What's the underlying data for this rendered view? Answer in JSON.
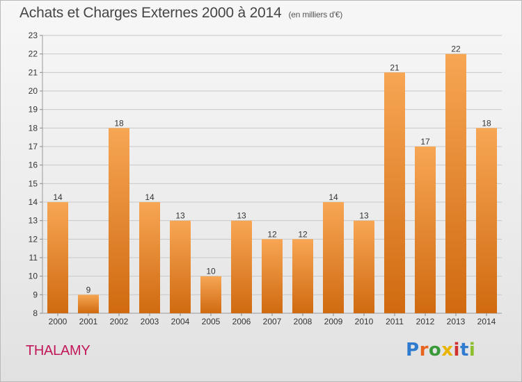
{
  "header": {
    "title": "Achats et Charges Externes 2000 à 2014",
    "unit": "(en milliers d'€)"
  },
  "footer": {
    "commune": "THALAMY",
    "logo_text": "Proxiti"
  },
  "colors": {
    "bar_top": "#f7a654",
    "bar_bottom": "#d06a10",
    "grid": "#c8c8c8",
    "axis_text": "#333333",
    "logo_letters": [
      "#2e7bcf",
      "#e8641e",
      "#3a9a3a",
      "#e8b400",
      "#d0302e",
      "#2e7bcf",
      "#8bbf2c"
    ]
  },
  "chart_data": {
    "type": "bar",
    "title": "Achats et Charges Externes 2000 à 2014",
    "categories": [
      "2000",
      "2001",
      "2002",
      "2003",
      "2004",
      "2005",
      "2006",
      "2007",
      "2008",
      "2009",
      "2010",
      "2011",
      "2012",
      "2013",
      "2014"
    ],
    "values": [
      14,
      9,
      18,
      14,
      13,
      10,
      13,
      12,
      12,
      14,
      13,
      21,
      17,
      22,
      18
    ],
    "ylim": [
      8,
      23
    ],
    "yticks": [
      8,
      9,
      10,
      11,
      12,
      13,
      14,
      15,
      16,
      17,
      18,
      19,
      20,
      21,
      22,
      23
    ],
    "grid": true,
    "data_labels": true
  }
}
